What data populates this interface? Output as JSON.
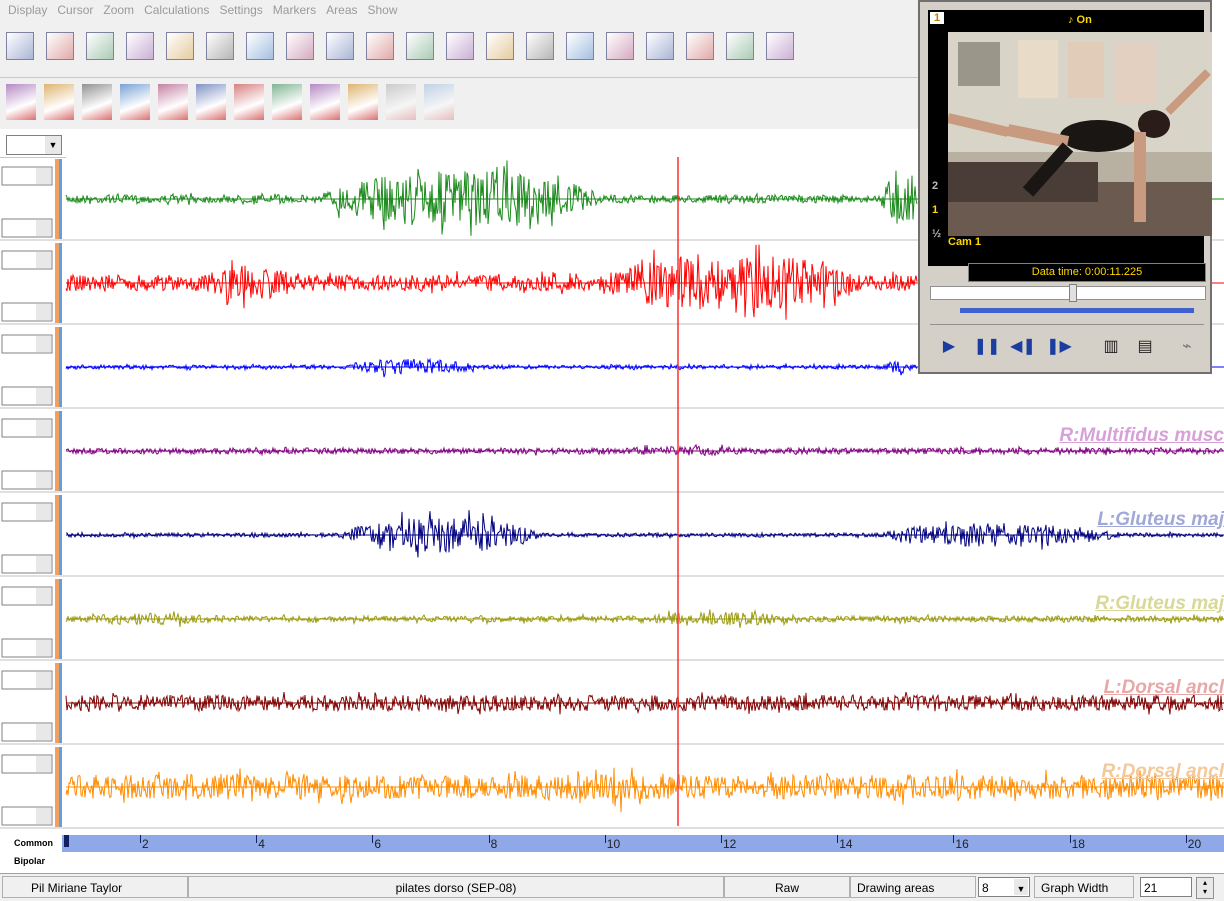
{
  "menu": [
    "Display",
    "Cursor",
    "Zoom",
    "Calculations",
    "Settings",
    "Markers",
    "Areas",
    "Show"
  ],
  "video": {
    "frame_label": "1",
    "sound": "♪ On",
    "side_marks": [
      "2",
      "1",
      "½"
    ],
    "camera": "Cam 1",
    "data_time": "Data time: 0:00:11.225"
  },
  "channels": [
    {
      "label": "R:Multifidus musc"
    },
    {
      "label": "L:Gluteus maj"
    },
    {
      "label": "R:Gluteus maj"
    },
    {
      "label": "L:Dorsal ancl"
    },
    {
      "label": "R:Dorsal ancl"
    }
  ],
  "time_axis": {
    "labels": [
      "Common",
      "Bipolar"
    ],
    "ticks": [
      2,
      4,
      6,
      8,
      10,
      12,
      14,
      16,
      18,
      20
    ]
  },
  "status": {
    "patient": "Pil Miriane Taylor",
    "session": "pilates dorso (SEP-08)",
    "mode": "Raw",
    "drawing_areas_label": "Drawing areas",
    "drawing_areas": "8",
    "graph_width_label": "Graph Width",
    "graph_width": "21"
  }
}
